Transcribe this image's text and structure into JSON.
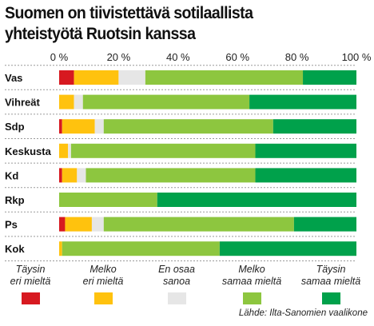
{
  "title_line1": "Suomen on tiivistettävä sotilaallista",
  "title_line2": "yhteistyötä Ruotsin kanssa",
  "source": "Lähde: Ilta-Sanomien vaalikone",
  "colors": [
    "#d71920",
    "#ffc20e",
    "#e6e6e6",
    "#8dc63f",
    "#00a14b"
  ],
  "chart_data": {
    "type": "bar",
    "orientation": "horizontal",
    "stacked": true,
    "x_range": [
      0,
      100
    ],
    "x_ticks": [
      "0 %",
      "20 %",
      "40 %",
      "60 %",
      "80 %",
      "100 %"
    ],
    "categories": [
      "Vas",
      "Vihreät",
      "Sdp",
      "Keskusta",
      "Kd",
      "Rkp",
      "Ps",
      "Kok"
    ],
    "series": [
      {
        "name": "Täysin eri mieltä",
        "values": [
          5,
          0,
          1,
          0,
          1,
          0,
          2,
          0
        ]
      },
      {
        "name": "Melko eri mieltä",
        "values": [
          15,
          5,
          11,
          3,
          5,
          0,
          9,
          1
        ]
      },
      {
        "name": "En osaa sanoa",
        "values": [
          9,
          3,
          3,
          1,
          3,
          0,
          4,
          0
        ]
      },
      {
        "name": "Melko samaa mieltä",
        "values": [
          53,
          56,
          57,
          62,
          57,
          33,
          64,
          53
        ]
      },
      {
        "name": "Täysin samaa mieltä",
        "values": [
          18,
          36,
          28,
          34,
          34,
          67,
          21,
          46
        ]
      }
    ],
    "legend": [
      {
        "line1": "Täysin",
        "line2": "eri mieltä"
      },
      {
        "line1": "Melko",
        "line2": "eri mieltä"
      },
      {
        "line1": "En osaa",
        "line2": "sanoa"
      },
      {
        "line1": "Melko",
        "line2": "samaa mieltä"
      },
      {
        "line1": "Täysin",
        "line2": "samaa mieltä"
      }
    ]
  }
}
